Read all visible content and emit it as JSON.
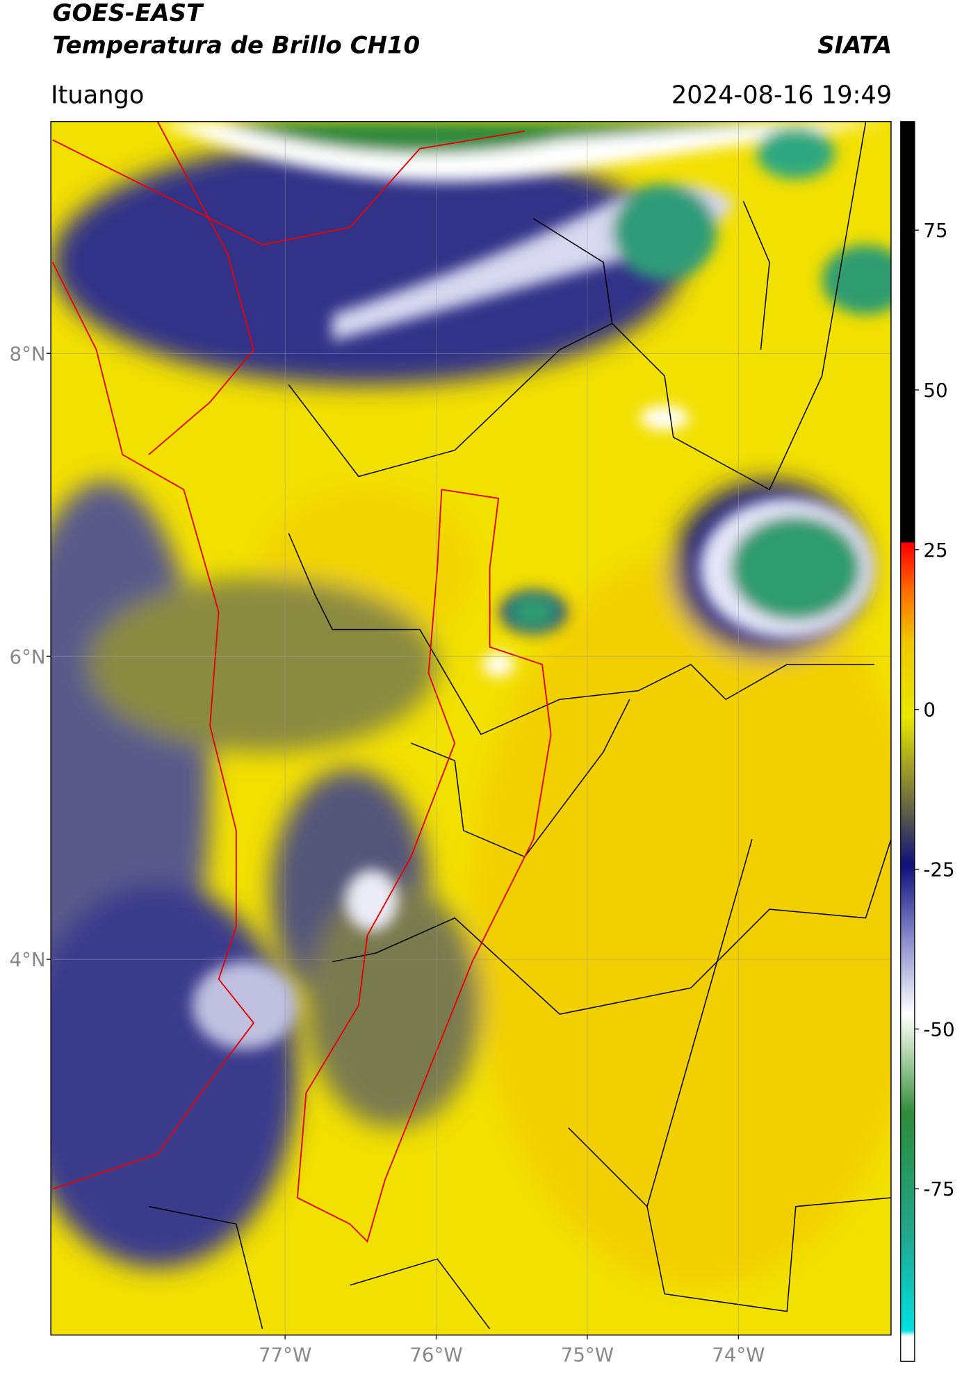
{
  "header": {
    "title": "GOES-EAST",
    "subtitle": "Temperatura de Brillo CH10",
    "source": "SIATA",
    "location": "Ituango",
    "datetime": "2024-08-16 19:49"
  },
  "map": {
    "lat_lim": [
      1.52,
      9.53
    ],
    "lon_lim": [
      -78.55,
      -72.99
    ],
    "lat_ticks": [
      {
        "value": 8,
        "label": "8°N"
      },
      {
        "value": 6,
        "label": "6°N"
      },
      {
        "value": 4,
        "label": "4°N"
      }
    ],
    "lon_ticks": [
      {
        "value": -77,
        "label": "77°W"
      },
      {
        "value": -76,
        "label": "76°W"
      },
      {
        "value": -75,
        "label": "75°W"
      },
      {
        "value": -74,
        "label": "74°W"
      }
    ],
    "grid": true
  },
  "colorbar": {
    "lim": [
      -102,
      92
    ],
    "ticks": [
      75,
      50,
      25,
      0,
      -25,
      -50,
      -75
    ]
  }
}
